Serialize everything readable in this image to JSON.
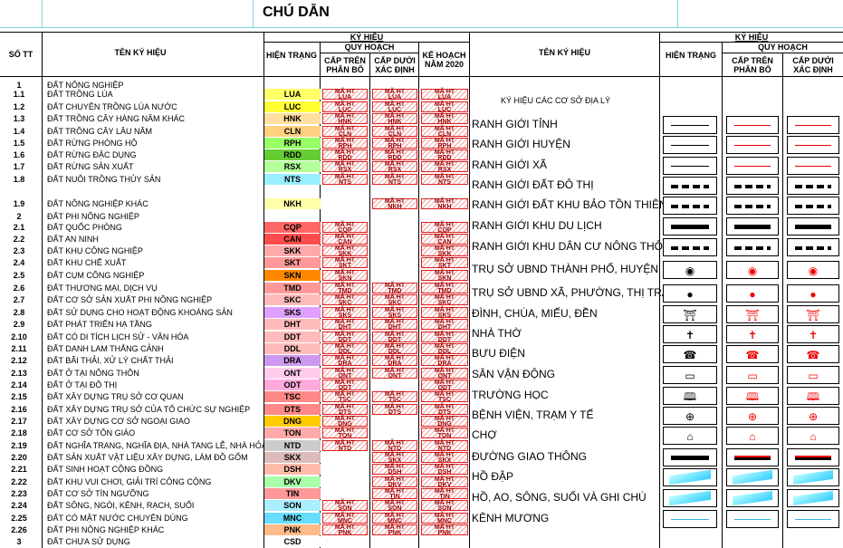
{
  "title": "CHÚ DẪN",
  "left_header": {
    "stt": "SỐ TT",
    "name": "TÊN KÝ HIỆU",
    "kyhieu": "KÝ HIỆU",
    "hien_trang": "HIỆN TRẠNG",
    "quy_hoach": "QUY HOẠCH",
    "cap_tren": "CẤP TRÊN PHÂN BỔ",
    "cap_duoi": "CẤP DƯỚI XÁC ĐỊNH",
    "ke_hoach": "KẾ HOẠCH NĂM 2020"
  },
  "right_header": {
    "name": "TÊN KÝ HIỆU",
    "kyhieu": "KÝ HIỆU",
    "hien_trang": "HIỆN TRẠNG",
    "quy_hoach": "QUY HOẠCH",
    "cap_tren": "CẤP TRÊN PHÂN BỔ",
    "cap_duoi": "CẤP DƯỚI XÁC ĐỊNH"
  },
  "hatch_label": "MÃ HT",
  "rows": [
    {
      "no": "1",
      "name": "ĐẤT NÔNG NGHIỆP",
      "code": "",
      "color": ""
    },
    {
      "no": "1.1",
      "name": "ĐẤT TRỒNG LÚA",
      "code": "LUA",
      "color": "#ffff66"
    },
    {
      "no": "1.2",
      "name": "ĐẤT CHUYÊN TRỒNG LÚA NƯỚC",
      "code": "LUC",
      "color": "#ffff33"
    },
    {
      "no": "1.3",
      "name": "ĐẤT TRỒNG CÂY HÀNG NĂM KHÁC",
      "code": "HNK",
      "color": "#ffe0a0"
    },
    {
      "no": "1.4",
      "name": "ĐẤT TRỒNG CÂY LÂU NĂM",
      "code": "CLN",
      "color": "#ffd080"
    },
    {
      "no": "1.5",
      "name": "ĐẤT RỪNG PHÒNG HỘ",
      "code": "RPH",
      "color": "#99ff66"
    },
    {
      "no": "1.6",
      "name": "ĐẤT RỪNG ĐẶC DỤNG",
      "code": "RDD",
      "color": "#66cc33"
    },
    {
      "no": "1.7",
      "name": "ĐẤT RỪNG SẢN XUẤT",
      "code": "RSX",
      "color": "#b3ff99"
    },
    {
      "no": "1.8",
      "name": "ĐẤT NUÔI TRỒNG THỦY SẢN",
      "code": "NTS",
      "color": "#99eeff"
    },
    {
      "no": "1.9",
      "name": "ĐẤT NÔNG NGHIỆP KHÁC",
      "code": "NKH",
      "color": "#ffffaa"
    },
    {
      "no": "2",
      "name": "ĐẤT PHI NÔNG NGHIỆP",
      "code": "",
      "color": ""
    },
    {
      "no": "2.1",
      "name": "ĐẤT QUỐC PHÒNG",
      "code": "CQP",
      "color": "#ff6666"
    },
    {
      "no": "2.2",
      "name": "ĐẤT AN NINH",
      "code": "CAN",
      "color": "#ff4d4d"
    },
    {
      "no": "2.3",
      "name": "ĐẤT KHU CÔNG NGHIỆP",
      "code": "SKK",
      "color": "#ffaaaa"
    },
    {
      "no": "2.4",
      "name": "ĐẤT KHU CHẾ XUẤT",
      "code": "SKT",
      "color": "#ff9999"
    },
    {
      "no": "2.5",
      "name": "ĐẤT CỤM CÔNG NGHIỆP",
      "code": "SKN",
      "color": "#ff8800"
    },
    {
      "no": "2.6",
      "name": "ĐẤT THƯƠNG MẠI, DỊCH VỤ",
      "code": "TMD",
      "color": "#ff9999"
    },
    {
      "no": "2.7",
      "name": "ĐẤT CƠ SỞ SẢN XUẤT PHI NÔNG NGHIỆP",
      "code": "SKC",
      "color": "#ffbbbb"
    },
    {
      "no": "2.8",
      "name": "ĐẤT SỬ DỤNG CHO HOẠT ĐỘNG KHOÁNG SẢN",
      "code": "SKS",
      "color": "#e0a0ff"
    },
    {
      "no": "2.9",
      "name": "ĐẤT PHÁT TRIỂN HẠ TẦNG",
      "code": "DHT",
      "color": "#ffbbbb"
    },
    {
      "no": "2.10",
      "name": "ĐẤT CÓ DI TÍCH LỊCH SỬ - VĂN HÓA",
      "code": "DDT",
      "color": "#ffbbbb"
    },
    {
      "no": "2.11",
      "name": "ĐẤT DANH LAM THẮNG CẢNH",
      "code": "DDL",
      "color": "#ffbbbb"
    },
    {
      "no": "2.12",
      "name": "ĐẤT BÃI THẢI, XỬ LÝ CHẤT THẢI",
      "code": "DRA",
      "color": "#cc99ee"
    },
    {
      "no": "2.13",
      "name": "ĐẤT Ở TẠI NÔNG THÔN",
      "code": "ONT",
      "color": "#ffccee"
    },
    {
      "no": "2.14",
      "name": "ĐẤT Ở TẠI ĐÔ THỊ",
      "code": "ODT",
      "color": "#ffaadd"
    },
    {
      "no": "2.15",
      "name": "ĐẤT XÂY DỰNG TRỤ SỞ CƠ QUAN",
      "code": "TSC",
      "color": "#ff8888"
    },
    {
      "no": "2.16",
      "name": "ĐẤT XÂY DỰNG TRỤ SỞ CỦA TỔ CHỨC SỰ NGHIỆP",
      "code": "DTS",
      "color": "#ff8888"
    },
    {
      "no": "2.17",
      "name": "ĐẤT XÂY DỰNG CƠ SỞ NGOẠI GIAO",
      "code": "DNG",
      "color": "#ffcc00"
    },
    {
      "no": "2.18",
      "name": "ĐẤT CƠ SỞ TÔN GIÁO",
      "code": "TON",
      "color": "#ffaaaa"
    },
    {
      "no": "2.19",
      "name": "ĐẤT NGHĨA TRANG, NGHĨA ĐỊA, NHÀ TANG LỄ, NHÀ HỎA TÁNG",
      "code": "NTD",
      "color": "#cccccc"
    },
    {
      "no": "2.20",
      "name": "ĐẤT SẢN XUẤT VẬT LIỆU XÂY DỰNG, LÀM ĐỒ GỐM",
      "code": "SKX",
      "color": "#ddbbbb"
    },
    {
      "no": "2.21",
      "name": "ĐẤT SINH HOẠT CỘNG ĐỒNG",
      "code": "DSH",
      "color": "#ffbbaa"
    },
    {
      "no": "2.22",
      "name": "ĐẤT KHU VUI CHƠI, GIẢI TRÍ CÔNG CỘNG",
      "code": "DKV",
      "color": "#aaffaa"
    },
    {
      "no": "2.23",
      "name": "ĐẤT CƠ SỞ TÍN NGƯỠNG",
      "code": "TIN",
      "color": "#ff9999"
    },
    {
      "no": "2.24",
      "name": "ĐẤT SÔNG, NGÒI, KÊNH, RẠCH, SUỐI",
      "code": "SON",
      "color": "#aaeeff"
    },
    {
      "no": "2.25",
      "name": "ĐẤT CÓ MẶT NƯỚC CHUYÊN DÙNG",
      "code": "MNC",
      "color": "#66ddff"
    },
    {
      "no": "2.26",
      "name": "ĐẤT PHI NÔNG NGHIỆP KHÁC",
      "code": "PNK",
      "color": "#ffbb88"
    },
    {
      "no": "3",
      "name": "ĐẤT CHƯA SỬ DỤNG",
      "code": "CSD",
      "color": "#ffffff"
    }
  ],
  "symbols_title": "KÝ HIỆU CÁC CƠ SỞ ĐỊA LÝ",
  "symbols": [
    {
      "name": "RANH GIỚI TỈNH",
      "kind": "line"
    },
    {
      "name": "RANH GIỚI HUYỆN",
      "kind": "line"
    },
    {
      "name": "RANH GIỚI XÃ",
      "kind": "line"
    },
    {
      "name": "RANH GIỚI ĐẤT ĐÔ THỊ",
      "kind": "dash"
    },
    {
      "name": "RANH GIỚI ĐẤT KHU BẢO TỒN THIÊN NHIÊN",
      "kind": "dash"
    },
    {
      "name": "RANH GIỚI KHU DU LỊCH",
      "kind": "bar"
    },
    {
      "name": "RANH GIỚI KHU DÂN CƯ NÔNG THÔN",
      "kind": "dash"
    },
    {
      "name": "TRỤ SỞ UBND THÀNH PHỐ, HUYỆN",
      "kind": "icon",
      "icon": "◉"
    },
    {
      "name": "TRỤ SỞ UBND XÃ, PHƯỜNG, THỊ TRẤN",
      "kind": "icon",
      "icon": "●"
    },
    {
      "name": "ĐÌNH, CHÙA, MIẾU, ĐỀN",
      "kind": "icon",
      "icon": "⛩"
    },
    {
      "name": "NHÀ THỜ",
      "kind": "icon",
      "icon": "✝"
    },
    {
      "name": "BƯU ĐIỆN",
      "kind": "icon",
      "icon": "☎"
    },
    {
      "name": "SÂN VẬN ĐỘNG",
      "kind": "icon",
      "icon": "▭"
    },
    {
      "name": "TRƯỜNG HỌC",
      "kind": "icon",
      "icon": "🕮"
    },
    {
      "name": "BỆNH VIỆN, TRẠM Y TẾ",
      "kind": "icon",
      "icon": "⊕"
    },
    {
      "name": "CHỢ",
      "kind": "icon",
      "icon": "⌂"
    },
    {
      "name": "ĐƯỜNG GIAO THÔNG",
      "kind": "road"
    },
    {
      "name": "HỒ ĐẬP",
      "kind": "dam"
    },
    {
      "name": "HỒ, AO, SÔNG, SUỐI VÀ GHI CHÚ",
      "kind": "dam"
    },
    {
      "name": "KÊNH MƯƠNG",
      "kind": "canal"
    }
  ],
  "colors": {
    "red": "#e00000",
    "hatch": "#f5a0a0",
    "cyan": "#7ed6e0"
  }
}
